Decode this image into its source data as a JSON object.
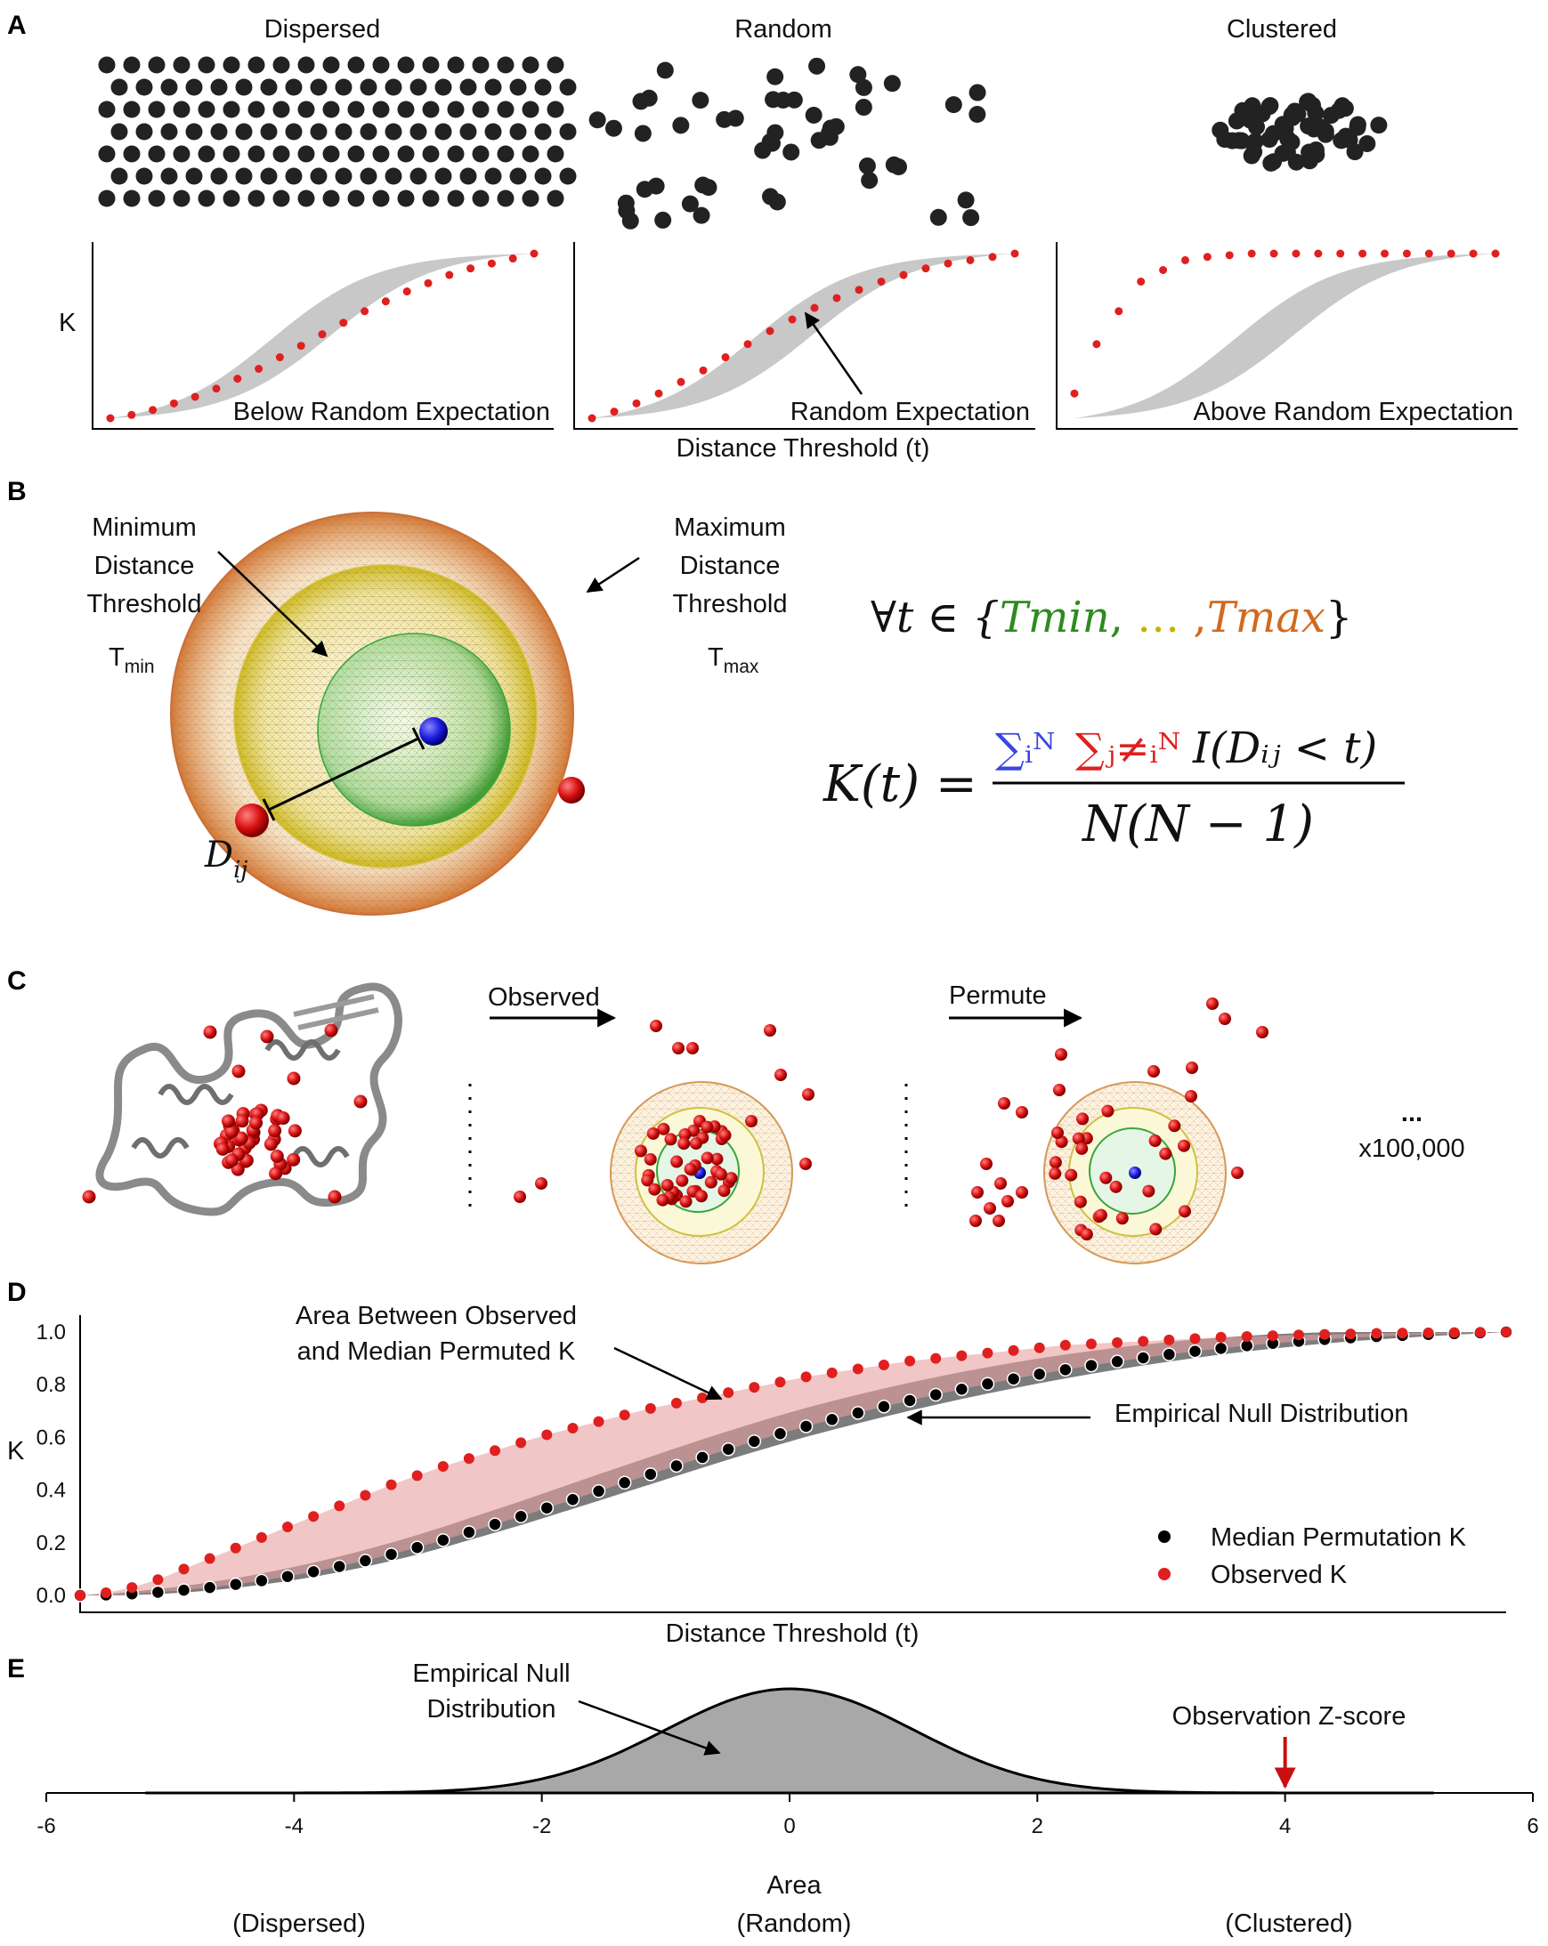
{
  "panel_labels": [
    "A",
    "B",
    "C",
    "D",
    "E"
  ],
  "panelA": {
    "titles": [
      "Dispersed",
      "Random",
      "Clustered"
    ],
    "ylabel": "K",
    "xlabel": "Distance Threshold (t)",
    "captions": [
      "Below Random Expectation",
      "Random Expectation",
      "Above Random Expectation"
    ]
  },
  "panelB": {
    "min_label": [
      "Minimum",
      "Distance",
      "Threshold"
    ],
    "t_min_main": "T",
    "t_min_sub": "min",
    "max_label": [
      "Maximum",
      "Distance",
      "Threshold"
    ],
    "t_max_main": "T",
    "t_max_sub": "max",
    "dij_main": "D",
    "dij_sub": "ij",
    "formula_set": {
      "prefix": "∀t ∈ {",
      "tmin": "Tmin",
      "sep1": ",",
      "dots": " … ",
      "sep2": ",",
      "tmax": "Tmax",
      "suffix": "}"
    },
    "formula_k": {
      "lhs": "K(t) =",
      "sum_i": "∑ᵢᴺ",
      "sum_j": "∑ⱼ≠ᵢᴺ",
      "indicator": "I(Dᵢⱼ < t)",
      "denominator": "N(N − 1)"
    },
    "colors": {
      "tmin": "#2e8b1f",
      "dots": "#c8b000",
      "tmax": "#d2691e",
      "sum_i": "#3b46e0",
      "sum_j": "#e01f1f"
    }
  },
  "panelC": {
    "observed": "Observed",
    "permute": "Permute",
    "ellipsis": "...",
    "count": "x100,000"
  },
  "panelD": {
    "annotation1": [
      "Area Between Observed",
      "and Median Permuted K"
    ],
    "annotation2": "Empirical Null Distribution",
    "ylabel": "K",
    "xlabel": "Distance Threshold (t)",
    "legend": [
      "Median Permutation K",
      "Observed K"
    ]
  },
  "panelE": {
    "annotation1": [
      "Empirical Null",
      "Distribution"
    ],
    "annotation2": "Observation Z-score",
    "xlabel": "Area",
    "bottom_labels": [
      "(Dispersed)",
      "(Random)",
      "(Clustered)"
    ]
  },
  "chart_data": [
    {
      "type": "scatter",
      "title": "Dispersed",
      "ylabel": "K",
      "xlabel": "Distance Threshold (t)",
      "annotation": "Below Random Expectation",
      "observed_k": [
        0.0,
        0.02,
        0.05,
        0.09,
        0.13,
        0.18,
        0.24,
        0.3,
        0.37,
        0.44,
        0.51,
        0.58,
        0.65,
        0.71,
        0.77,
        0.82,
        0.87,
        0.91,
        0.94,
        0.97,
        1.0
      ],
      "null_band": true
    },
    {
      "type": "scatter",
      "title": "Random",
      "annotation": "Random Expectation",
      "observed_k": [
        0.0,
        0.04,
        0.09,
        0.15,
        0.22,
        0.29,
        0.37,
        0.45,
        0.53,
        0.6,
        0.67,
        0.73,
        0.78,
        0.83,
        0.87,
        0.91,
        0.94,
        0.96,
        0.98,
        1.0
      ],
      "null_band": true
    },
    {
      "type": "scatter",
      "title": "Clustered",
      "annotation": "Above Random Expectation",
      "observed_k": [
        0.15,
        0.45,
        0.65,
        0.83,
        0.9,
        0.96,
        0.98,
        0.99,
        1.0,
        1.0,
        1.0,
        1.0,
        1.0,
        1.0,
        1.0,
        1.0,
        1.0,
        1.0,
        1.0,
        1.0
      ],
      "null_band": true
    },
    {
      "type": "scatter",
      "xlabel": "Distance Threshold (t)",
      "ylabel": "K",
      "ylim": [
        0,
        1
      ],
      "yticks": [
        0.0,
        0.2,
        0.4,
        0.6,
        0.8,
        1.0
      ],
      "series": [
        {
          "name": "Median Permutation K",
          "color": "#000000",
          "values": [
            0.0,
            0.002,
            0.006,
            0.012,
            0.02,
            0.03,
            0.042,
            0.056,
            0.072,
            0.09,
            0.11,
            0.132,
            0.156,
            0.182,
            0.21,
            0.24,
            0.27,
            0.3,
            0.332,
            0.364,
            0.396,
            0.428,
            0.46,
            0.492,
            0.524,
            0.555,
            0.585,
            0.614,
            0.642,
            0.668,
            0.693,
            0.717,
            0.74,
            0.762,
            0.783,
            0.803,
            0.822,
            0.84,
            0.857,
            0.873,
            0.888,
            0.902,
            0.915,
            0.927,
            0.938,
            0.948,
            0.957,
            0.965,
            0.972,
            0.978,
            0.983,
            0.987,
            0.991,
            0.994,
            0.997,
            1.0
          ]
        },
        {
          "name": "Observed K",
          "color": "#e01f1f",
          "values": [
            0.0,
            0.01,
            0.03,
            0.06,
            0.1,
            0.14,
            0.18,
            0.22,
            0.26,
            0.3,
            0.34,
            0.38,
            0.42,
            0.455,
            0.49,
            0.52,
            0.55,
            0.58,
            0.61,
            0.635,
            0.66,
            0.685,
            0.71,
            0.73,
            0.75,
            0.77,
            0.79,
            0.81,
            0.83,
            0.845,
            0.86,
            0.875,
            0.89,
            0.9,
            0.91,
            0.92,
            0.93,
            0.94,
            0.95,
            0.955,
            0.96,
            0.965,
            0.97,
            0.975,
            0.98,
            0.983,
            0.986,
            0.989,
            0.991,
            0.993,
            0.995,
            0.996,
            0.997,
            0.998,
            0.999,
            1.0
          ]
        }
      ]
    },
    {
      "type": "area",
      "xlabel": "Area",
      "xlim": [
        -6,
        6
      ],
      "xticks": [
        -6,
        -4,
        -2,
        0,
        2,
        4,
        6
      ],
      "distribution": "standard normal",
      "observation_z": 4
    }
  ]
}
